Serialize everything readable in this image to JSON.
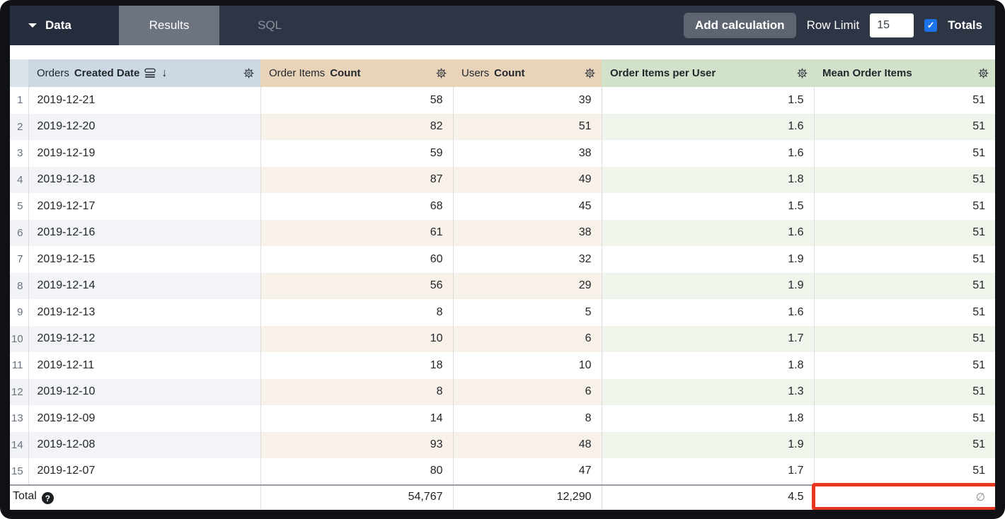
{
  "toolbar": {
    "data_label": "Data",
    "tabs": [
      {
        "id": "results",
        "label": "Results",
        "active": true
      },
      {
        "id": "sql",
        "label": "SQL",
        "active": false
      }
    ],
    "add_calculation_label": "Add calculation",
    "row_limit_label": "Row Limit",
    "row_limit_value": "15",
    "totals_label": "Totals",
    "totals_checked": true
  },
  "table": {
    "columns": [
      {
        "key": "date",
        "prefix": "Orders",
        "name": "Created Date",
        "type": "dimension",
        "sorted_desc": true
      },
      {
        "key": "order_items_count",
        "prefix": "Order Items",
        "name": "Count",
        "type": "measure"
      },
      {
        "key": "users_count",
        "prefix": "Users",
        "name": "Count",
        "type": "measure"
      },
      {
        "key": "order_items_per_user",
        "prefix": "",
        "name": "Order Items per User",
        "type": "table_calculation"
      },
      {
        "key": "mean_order_items",
        "prefix": "",
        "name": "Mean Order Items",
        "type": "table_calculation"
      }
    ],
    "rows": [
      {
        "n": "1",
        "date": "2019-12-21",
        "order_items_count": "58",
        "users_count": "39",
        "order_items_per_user": "1.5",
        "mean_order_items": "51"
      },
      {
        "n": "2",
        "date": "2019-12-20",
        "order_items_count": "82",
        "users_count": "51",
        "order_items_per_user": "1.6",
        "mean_order_items": "51"
      },
      {
        "n": "3",
        "date": "2019-12-19",
        "order_items_count": "59",
        "users_count": "38",
        "order_items_per_user": "1.6",
        "mean_order_items": "51"
      },
      {
        "n": "4",
        "date": "2019-12-18",
        "order_items_count": "87",
        "users_count": "49",
        "order_items_per_user": "1.8",
        "mean_order_items": "51"
      },
      {
        "n": "5",
        "date": "2019-12-17",
        "order_items_count": "68",
        "users_count": "45",
        "order_items_per_user": "1.5",
        "mean_order_items": "51"
      },
      {
        "n": "6",
        "date": "2019-12-16",
        "order_items_count": "61",
        "users_count": "38",
        "order_items_per_user": "1.6",
        "mean_order_items": "51"
      },
      {
        "n": "7",
        "date": "2019-12-15",
        "order_items_count": "60",
        "users_count": "32",
        "order_items_per_user": "1.9",
        "mean_order_items": "51"
      },
      {
        "n": "8",
        "date": "2019-12-14",
        "order_items_count": "56",
        "users_count": "29",
        "order_items_per_user": "1.9",
        "mean_order_items": "51"
      },
      {
        "n": "9",
        "date": "2019-12-13",
        "order_items_count": "8",
        "users_count": "5",
        "order_items_per_user": "1.6",
        "mean_order_items": "51"
      },
      {
        "n": "10",
        "date": "2019-12-12",
        "order_items_count": "10",
        "users_count": "6",
        "order_items_per_user": "1.7",
        "mean_order_items": "51"
      },
      {
        "n": "11",
        "date": "2019-12-11",
        "order_items_count": "18",
        "users_count": "10",
        "order_items_per_user": "1.8",
        "mean_order_items": "51"
      },
      {
        "n": "12",
        "date": "2019-12-10",
        "order_items_count": "8",
        "users_count": "6",
        "order_items_per_user": "1.3",
        "mean_order_items": "51"
      },
      {
        "n": "13",
        "date": "2019-12-09",
        "order_items_count": "14",
        "users_count": "8",
        "order_items_per_user": "1.8",
        "mean_order_items": "51"
      },
      {
        "n": "14",
        "date": "2019-12-08",
        "order_items_count": "93",
        "users_count": "48",
        "order_items_per_user": "1.9",
        "mean_order_items": "51"
      },
      {
        "n": "15",
        "date": "2019-12-07",
        "order_items_count": "80",
        "users_count": "47",
        "order_items_per_user": "1.7",
        "mean_order_items": "51"
      }
    ],
    "total": {
      "label": "Total",
      "values": {
        "order_items_count": "54,767",
        "users_count": "12,290",
        "order_items_per_user": "4.5",
        "mean_order_items": "∅"
      }
    },
    "highlight": {
      "column": "mean_order_items",
      "row": "total",
      "color": "#e8351f"
    }
  },
  "icons": {
    "caret": "chevron-down-icon",
    "sort": "sort-rows-icon",
    "sort_arrow": "↓",
    "gear": "gear-icon",
    "help": "help-icon",
    "check": "✓",
    "null_symbol": "∅"
  },
  "colors": {
    "topbar": "#2e3544",
    "data_section": "#252c3b",
    "active_tab": "#6d7480",
    "checkbox_blue": "#1a73e8",
    "header_dimension": "#ccd9e5",
    "header_measure": "#e9d4ba",
    "header_calculation": "#d2e2ca",
    "highlight_red": "#e8351f"
  }
}
